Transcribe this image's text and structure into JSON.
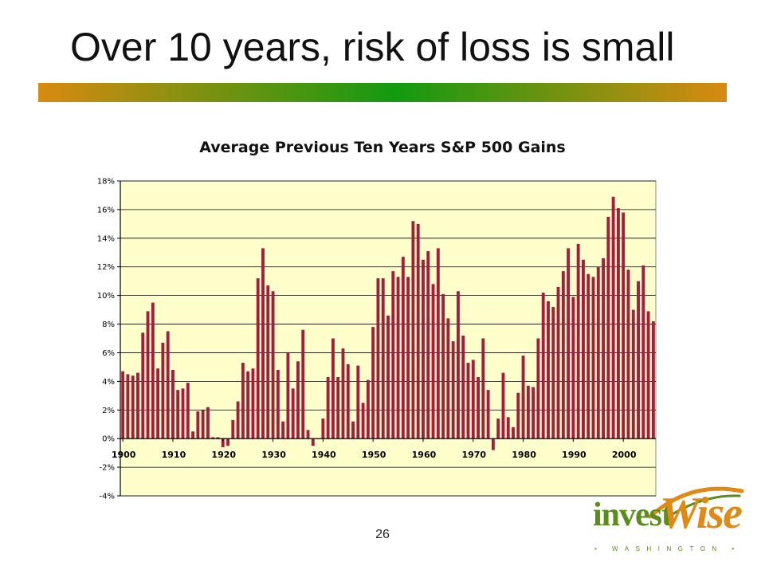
{
  "slide": {
    "title": "Over 10 years, risk of loss is small",
    "page_number": "26",
    "logo": {
      "name_part1": "invest",
      "name_part2": "Wise",
      "tagline": "• WASHINGTON •"
    },
    "colors": {
      "bar_left": "#d98a10",
      "bar_mid": "#129a10",
      "bar_right": "#d98a10",
      "plot_bg": "#ffffcc",
      "bar_color": "#a21f3c",
      "logo_green": "#5b8c1c",
      "logo_orange": "#e08a15"
    }
  },
  "chart_data": {
    "type": "bar",
    "title": "Average Previous Ten Years S&P 500 Gains",
    "xlabel": "",
    "ylabel": "",
    "ylim": [
      -4,
      18
    ],
    "grid": true,
    "legend": "none",
    "y_ticks": [
      "-4%",
      "-2%",
      "0%",
      "2%",
      "4%",
      "6%",
      "8%",
      "10%",
      "12%",
      "14%",
      "16%",
      "18%"
    ],
    "x_tick_labels": [
      "1900",
      "1910",
      "1920",
      "1930",
      "1940",
      "1950",
      "1960",
      "1970",
      "1980",
      "1990",
      "2000"
    ],
    "x_start": 1900,
    "values": [
      4.7,
      4.5,
      4.4,
      4.6,
      7.4,
      8.9,
      9.5,
      4.9,
      6.7,
      7.5,
      4.8,
      3.4,
      3.5,
      3.9,
      0.5,
      1.9,
      2.0,
      2.2,
      0.1,
      0.1,
      -0.6,
      -0.5,
      1.3,
      2.6,
      5.3,
      4.7,
      4.9,
      11.2,
      13.3,
      10.7,
      10.3,
      4.8,
      1.2,
      6.0,
      3.5,
      5.4,
      7.6,
      0.6,
      -0.5,
      0.0,
      1.4,
      4.3,
      7.0,
      4.3,
      6.3,
      5.2,
      1.2,
      5.1,
      2.5,
      4.1,
      7.8,
      11.2,
      11.2,
      8.6,
      11.7,
      11.3,
      12.7,
      11.3,
      15.2,
      15.0,
      12.5,
      13.1,
      10.8,
      13.3,
      10.1,
      8.4,
      6.8,
      10.3,
      7.2,
      5.3,
      5.5,
      4.3,
      7.0,
      3.4,
      -0.8,
      1.4,
      4.6,
      1.5,
      0.8,
      3.2,
      5.8,
      3.7,
      3.6,
      7.0,
      10.2,
      9.6,
      9.2,
      10.6,
      11.7,
      13.3,
      9.9,
      13.6,
      12.5,
      11.5,
      11.3,
      12.0,
      12.6,
      15.5,
      16.9,
      16.1,
      15.8,
      11.8,
      9.0,
      11.0,
      12.1,
      8.9,
      8.2
    ]
  }
}
